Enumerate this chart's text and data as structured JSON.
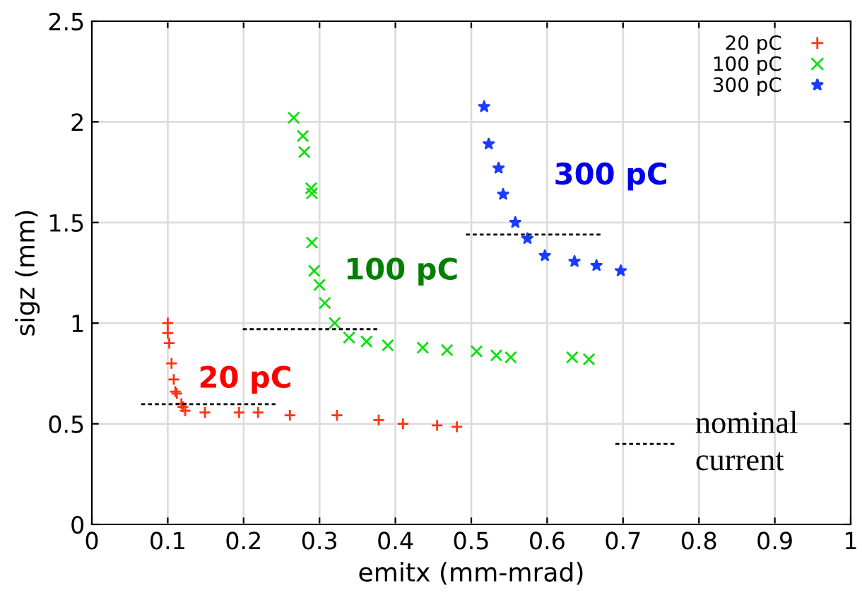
{
  "chart_data": {
    "type": "scatter",
    "xlabel": "emitx (mm-mrad)",
    "ylabel": "sigz (mm)",
    "xlim": [
      0,
      1
    ],
    "ylim": [
      0,
      2.5
    ],
    "xticks": [
      0,
      0.1,
      0.2,
      0.3,
      0.4,
      0.5,
      0.6,
      0.7,
      0.8,
      0.9,
      1
    ],
    "yticks": [
      0,
      0.5,
      1,
      1.5,
      2,
      2.5
    ],
    "grid": true,
    "legend": "top right",
    "series": [
      {
        "name": "20 pC",
        "color": "#ff3311",
        "marker": "cross",
        "x": [
          0.1,
          0.1,
          0.102,
          0.105,
          0.108,
          0.11,
          0.112,
          0.118,
          0.12,
          0.123,
          0.149,
          0.194,
          0.219,
          0.261,
          0.323,
          0.378,
          0.41,
          0.455,
          0.481
        ],
        "values": [
          1.0,
          0.95,
          0.9,
          0.8,
          0.72,
          0.66,
          0.65,
          0.6,
          0.584,
          0.565,
          0.556,
          0.556,
          0.556,
          0.542,
          0.542,
          0.518,
          0.5,
          0.492,
          0.485
        ]
      },
      {
        "name": "100 pC",
        "color": "#11dd11",
        "marker": "x",
        "x": [
          0.266,
          0.278,
          0.28,
          0.289,
          0.29,
          0.29,
          0.293,
          0.3,
          0.307,
          0.32,
          0.339,
          0.362,
          0.39,
          0.436,
          0.468,
          0.507,
          0.533,
          0.552,
          0.633,
          0.655
        ],
        "values": [
          2.02,
          1.93,
          1.85,
          1.67,
          1.645,
          1.4,
          1.26,
          1.19,
          1.1,
          1.0,
          0.928,
          0.909,
          0.89,
          0.878,
          0.866,
          0.86,
          0.84,
          0.83,
          0.83,
          0.82
        ]
      },
      {
        "name": "300 pC",
        "color": "#1a3cff",
        "marker": "star",
        "x": [
          0.517,
          0.523,
          0.536,
          0.542,
          0.558,
          0.574,
          0.597,
          0.636,
          0.665,
          0.697
        ],
        "values": [
          2.075,
          1.89,
          1.77,
          1.64,
          1.5,
          1.42,
          1.335,
          1.306,
          1.286,
          1.26
        ]
      },
      {
        "type": "line",
        "color": "#000000",
        "line_style": "dotted",
        "marker": "none",
        "x": [
          0.065,
          0.242
        ],
        "values": [
          0.597,
          0.597
        ]
      },
      {
        "type": "line",
        "color": "#000000",
        "line_style": "dotted",
        "marker": "none",
        "x": [
          0.199,
          0.376
        ],
        "values": [
          0.97,
          0.97
        ]
      },
      {
        "type": "line",
        "color": "#000000",
        "line_style": "dotted",
        "marker": "none",
        "x": [
          0.493,
          0.671
        ],
        "values": [
          1.44,
          1.44
        ]
      },
      {
        "type": "line",
        "color": "#000000",
        "line_style": "dotted",
        "marker": "none",
        "x": [
          0.69,
          0.771
        ],
        "values": [
          0.4,
          0.4
        ]
      }
    ],
    "annotations": [
      "20 pC",
      "100 pC",
      "300 pC",
      "nominal\ncurrent"
    ]
  }
}
